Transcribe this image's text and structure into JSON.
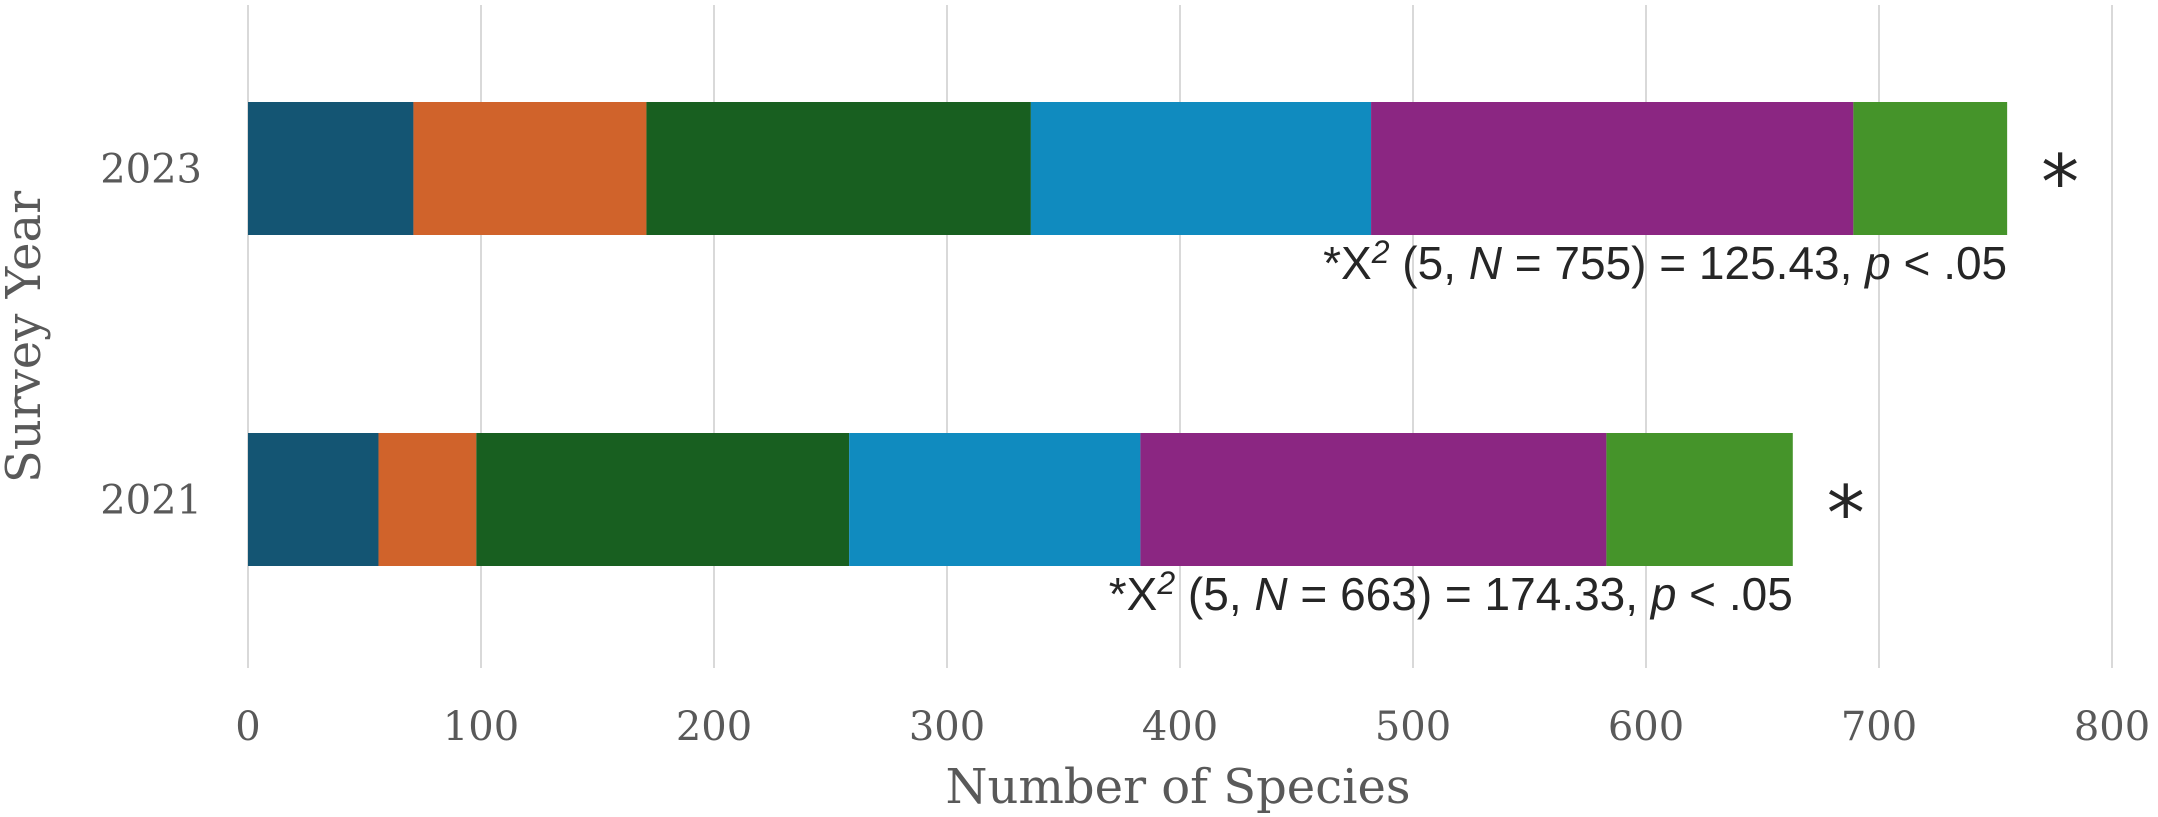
{
  "chart_data": {
    "type": "bar",
    "orientation": "horizontal",
    "stacked": true,
    "categories": [
      "2021",
      "2023"
    ],
    "series": [
      {
        "color": "#145573",
        "values": [
          56,
          71
        ]
      },
      {
        "color": "#D0632B",
        "values": [
          42,
          100
        ]
      },
      {
        "color": "#185F20",
        "values": [
          160,
          165
        ]
      },
      {
        "color": "#108BBF",
        "values": [
          125,
          146
        ]
      },
      {
        "color": "#8B2682",
        "values": [
          200,
          207
        ]
      },
      {
        "color": "#45942A",
        "values": [
          80,
          66
        ]
      }
    ],
    "totals": [
      663,
      755
    ],
    "xlabel": "Number of Species",
    "ylabel": "Survey Year",
    "xlim": [
      0,
      800
    ],
    "xticks": [
      0,
      100,
      200,
      300,
      400,
      500,
      600,
      700,
      800
    ],
    "grid": "vertical",
    "annotations": [
      {
        "category": "2023",
        "star": "*",
        "star_prefix": "*X",
        "sup": "2",
        "df_open": " (5, ",
        "n_symbol": "N",
        "n_eq": " = 755) = 125.43, ",
        "p_symbol": "p",
        "p_text": " < .05"
      },
      {
        "category": "2021",
        "star": "*",
        "star_prefix": "*X",
        "sup": "2",
        "df_open": " (5, ",
        "n_symbol": "N",
        "n_eq": " = 663) = 174.33, ",
        "p_symbol": "p",
        "p_text": " < .05"
      }
    ]
  }
}
